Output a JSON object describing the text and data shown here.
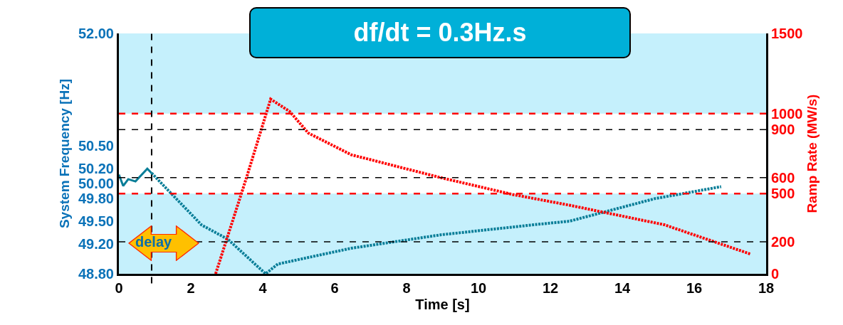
{
  "chart_data": {
    "type": "line",
    "title": "df/dt = 0.3Hz.s",
    "xlabel": "Time [s]",
    "ylabel": "System Frequency [Hz]",
    "y2label": "Ramp Rate (MW/s)",
    "annotations": [
      "delay"
    ],
    "series": [
      {
        "color": "#0a7e98",
        "line_style": "solid",
        "x": [
          0,
          0.12,
          0.26,
          0.46,
          0.79,
          0.91
        ],
        "values": [
          50.12,
          49.97,
          50.06,
          50.03,
          50.2,
          50.14
        ]
      },
      {
        "color": "#0a7e98",
        "line_style": "dotted",
        "x": [
          0.91,
          2.3,
          3.03,
          4.08,
          4.42,
          6.46,
          8.97,
          11.68,
          12.53,
          14.9,
          16.75
        ],
        "values": [
          50.14,
          49.45,
          49.26,
          48.8,
          48.93,
          49.14,
          49.32,
          49.46,
          49.5,
          49.8,
          49.96
        ]
      },
      {
        "color": "#ff0000",
        "line_style": "dotted",
        "axis": "y2",
        "x": [
          2.69,
          3.56,
          4.22,
          4.75,
          5.27,
          6.46,
          8.97,
          10.95,
          12.53,
          15.17,
          17.58
        ],
        "values": [
          0,
          608,
          1090,
          1013,
          878,
          743,
          599,
          495,
          428,
          306,
          122
        ]
      }
    ],
    "xlim": [
      0,
      18
    ],
    "xticks": [
      0,
      2,
      4,
      6,
      8,
      10,
      12,
      14,
      16,
      18
    ],
    "ylim": [
      48.8,
      52
    ],
    "yticks": [
      {
        "value": 48.8,
        "label": "48.80"
      },
      {
        "value": 49.2,
        "label": "49.20"
      },
      {
        "value": 49.5,
        "label": "49.50"
      },
      {
        "value": 49.8,
        "label": "49.80"
      },
      {
        "value": 50,
        "label": "50.00"
      },
      {
        "value": 50.2,
        "label": "50.20"
      },
      {
        "value": 50.5,
        "label": "50.50"
      },
      {
        "value": 52,
        "label": "52.00"
      }
    ],
    "y2lim": [
      0,
      1500
    ],
    "y2ticks": [
      0,
      200,
      500,
      600,
      900,
      1000,
      1500
    ],
    "bands": [
      {
        "axis": "y2",
        "from": 500,
        "to": 1000,
        "color": "#ffffff"
      }
    ],
    "ref_lines": [
      {
        "axis": "y2",
        "value": 1000,
        "color": "#ff0000",
        "line_style": "dashed"
      },
      {
        "axis": "y2",
        "value": 500,
        "color": "#ff0000",
        "line_style": "dashed"
      },
      {
        "axis": "y2",
        "value": 900,
        "color": "#000000",
        "line_style": "dashed"
      },
      {
        "axis": "y2",
        "value": 600,
        "color": "#000000",
        "line_style": "dashed"
      },
      {
        "axis": "y2",
        "value": 200,
        "color": "#000000",
        "line_style": "dashed"
      },
      {
        "axis": "x",
        "value": 0.91,
        "color": "#000000",
        "line_style": "dashed"
      }
    ]
  }
}
